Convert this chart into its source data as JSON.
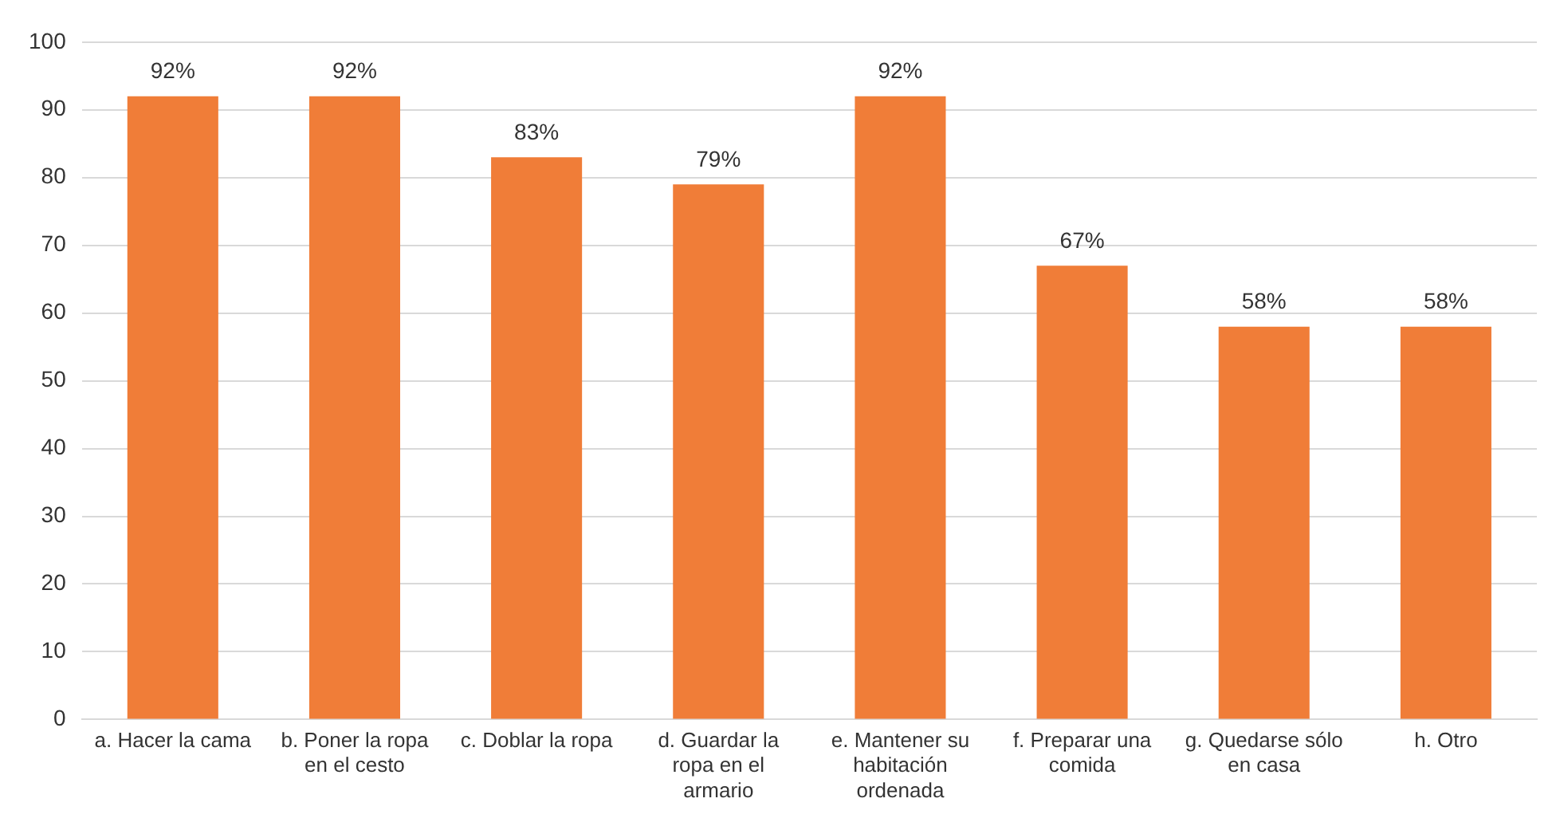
{
  "chart_data": {
    "type": "bar",
    "categories": [
      "a. Hacer la cama",
      "b. Poner la ropa en el cesto",
      "c. Doblar la ropa",
      "d. Guardar la ropa en el armario",
      "e. Mantener su habitación ordenada",
      "f. Preparar una comida",
      "g. Quedarse sólo en casa",
      "h. Otro"
    ],
    "values": [
      92,
      92,
      83,
      79,
      92,
      67,
      58,
      58
    ],
    "value_labels": [
      "92%",
      "92%",
      "83%",
      "79%",
      "92%",
      "67%",
      "58%",
      "58%"
    ],
    "color": "#f07d38",
    "ylim": [
      0,
      100
    ],
    "yticks": [
      0,
      10,
      20,
      30,
      40,
      50,
      60,
      70,
      80,
      90,
      100
    ],
    "grid": "y",
    "legend": false
  }
}
